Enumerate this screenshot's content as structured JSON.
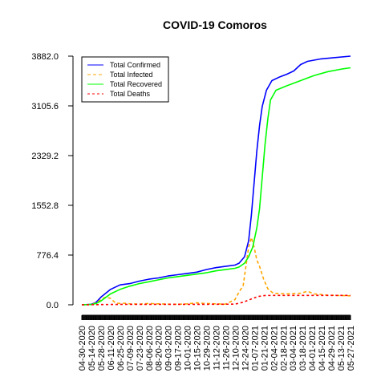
{
  "chart_data": {
    "type": "line",
    "title": "COVID-19 Comoros",
    "xlabel": "",
    "ylabel": "",
    "x_tick_labels": [
      "04-30-2020",
      "05-14-2020",
      "05-28-2020",
      "06-11-2020",
      "06-25-2020",
      "07-09-2020",
      "07-23-2020",
      "08-06-2020",
      "08-20-2020",
      "09-03-2020",
      "09-17-2020",
      "10-01-2020",
      "10-15-2020",
      "10-29-2020",
      "11-12-2020",
      "11-26-2020",
      "12-10-2020",
      "12-24-2020",
      "01-07-2021",
      "01-21-2021",
      "02-04-2021",
      "02-18-2021",
      "03-04-2021",
      "03-18-2021",
      "04-01-2021",
      "04-15-2021",
      "04-29-2021",
      "05-13-2021",
      "05-27-2021"
    ],
    "y_tick_labels": [
      "0.0",
      "776.4",
      "1552.8",
      "2329.2",
      "3105.6",
      "3882.0"
    ],
    "ylim": [
      0,
      3882
    ],
    "grid": false,
    "legend_position": "top-left",
    "series": [
      {
        "name": "Total Confirmed",
        "color": "#0000ff",
        "dash": "solid",
        "points": [
          [
            0,
            0
          ],
          [
            14,
            8
          ],
          [
            21,
            40
          ],
          [
            28,
            120
          ],
          [
            42,
            240
          ],
          [
            56,
            310
          ],
          [
            70,
            330
          ],
          [
            84,
            370
          ],
          [
            98,
            400
          ],
          [
            112,
            420
          ],
          [
            126,
            450
          ],
          [
            140,
            470
          ],
          [
            154,
            490
          ],
          [
            168,
            510
          ],
          [
            182,
            550
          ],
          [
            196,
            580
          ],
          [
            210,
            600
          ],
          [
            224,
            620
          ],
          [
            230,
            650
          ],
          [
            238,
            750
          ],
          [
            244,
            1000
          ],
          [
            248,
            1400
          ],
          [
            252,
            1900
          ],
          [
            256,
            2400
          ],
          [
            260,
            2800
          ],
          [
            264,
            3100
          ],
          [
            270,
            3350
          ],
          [
            278,
            3500
          ],
          [
            290,
            3560
          ],
          [
            300,
            3600
          ],
          [
            310,
            3650
          ],
          [
            320,
            3750
          ],
          [
            330,
            3800
          ],
          [
            350,
            3840
          ],
          [
            370,
            3860
          ],
          [
            393,
            3882
          ]
        ]
      },
      {
        "name": "Total Infected",
        "color": "#ffa500",
        "dash": "4,3",
        "points": [
          [
            0,
            0
          ],
          [
            14,
            5
          ],
          [
            21,
            30
          ],
          [
            28,
            80
          ],
          [
            35,
            120
          ],
          [
            42,
            100
          ],
          [
            49,
            30
          ],
          [
            56,
            20
          ],
          [
            63,
            25
          ],
          [
            70,
            15
          ],
          [
            84,
            10
          ],
          [
            98,
            20
          ],
          [
            112,
            15
          ],
          [
            126,
            10
          ],
          [
            140,
            8
          ],
          [
            154,
            15
          ],
          [
            168,
            30
          ],
          [
            182,
            20
          ],
          [
            196,
            15
          ],
          [
            210,
            10
          ],
          [
            224,
            80
          ],
          [
            230,
            200
          ],
          [
            236,
            300
          ],
          [
            240,
            600
          ],
          [
            244,
            900
          ],
          [
            248,
            1050
          ],
          [
            252,
            900
          ],
          [
            256,
            700
          ],
          [
            260,
            600
          ],
          [
            266,
            400
          ],
          [
            272,
            250
          ],
          [
            280,
            180
          ],
          [
            300,
            170
          ],
          [
            320,
            180
          ],
          [
            330,
            210
          ],
          [
            340,
            170
          ],
          [
            360,
            150
          ],
          [
            393,
            140
          ]
        ]
      },
      {
        "name": "Total Recovered",
        "color": "#00ff00",
        "dash": "solid",
        "points": [
          [
            0,
            0
          ],
          [
            14,
            5
          ],
          [
            21,
            20
          ],
          [
            28,
            60
          ],
          [
            42,
            170
          ],
          [
            56,
            240
          ],
          [
            70,
            290
          ],
          [
            84,
            330
          ],
          [
            98,
            360
          ],
          [
            112,
            390
          ],
          [
            126,
            420
          ],
          [
            140,
            440
          ],
          [
            154,
            460
          ],
          [
            168,
            480
          ],
          [
            182,
            500
          ],
          [
            196,
            530
          ],
          [
            210,
            550
          ],
          [
            224,
            570
          ],
          [
            230,
            590
          ],
          [
            238,
            650
          ],
          [
            244,
            750
          ],
          [
            250,
            900
          ],
          [
            256,
            1200
          ],
          [
            260,
            1500
          ],
          [
            264,
            2000
          ],
          [
            268,
            2500
          ],
          [
            272,
            2900
          ],
          [
            276,
            3200
          ],
          [
            284,
            3350
          ],
          [
            300,
            3420
          ],
          [
            320,
            3500
          ],
          [
            340,
            3580
          ],
          [
            360,
            3640
          ],
          [
            380,
            3680
          ],
          [
            393,
            3700
          ]
        ]
      },
      {
        "name": "Total Deaths",
        "color": "#ff0000",
        "dash": "3,3",
        "points": [
          [
            0,
            0
          ],
          [
            21,
            2
          ],
          [
            42,
            5
          ],
          [
            70,
            7
          ],
          [
            126,
            7
          ],
          [
            182,
            7
          ],
          [
            224,
            10
          ],
          [
            236,
            40
          ],
          [
            248,
            90
          ],
          [
            258,
            130
          ],
          [
            268,
            145
          ],
          [
            290,
            146
          ],
          [
            320,
            146
          ],
          [
            360,
            146
          ],
          [
            393,
            147
          ]
        ]
      }
    ]
  }
}
